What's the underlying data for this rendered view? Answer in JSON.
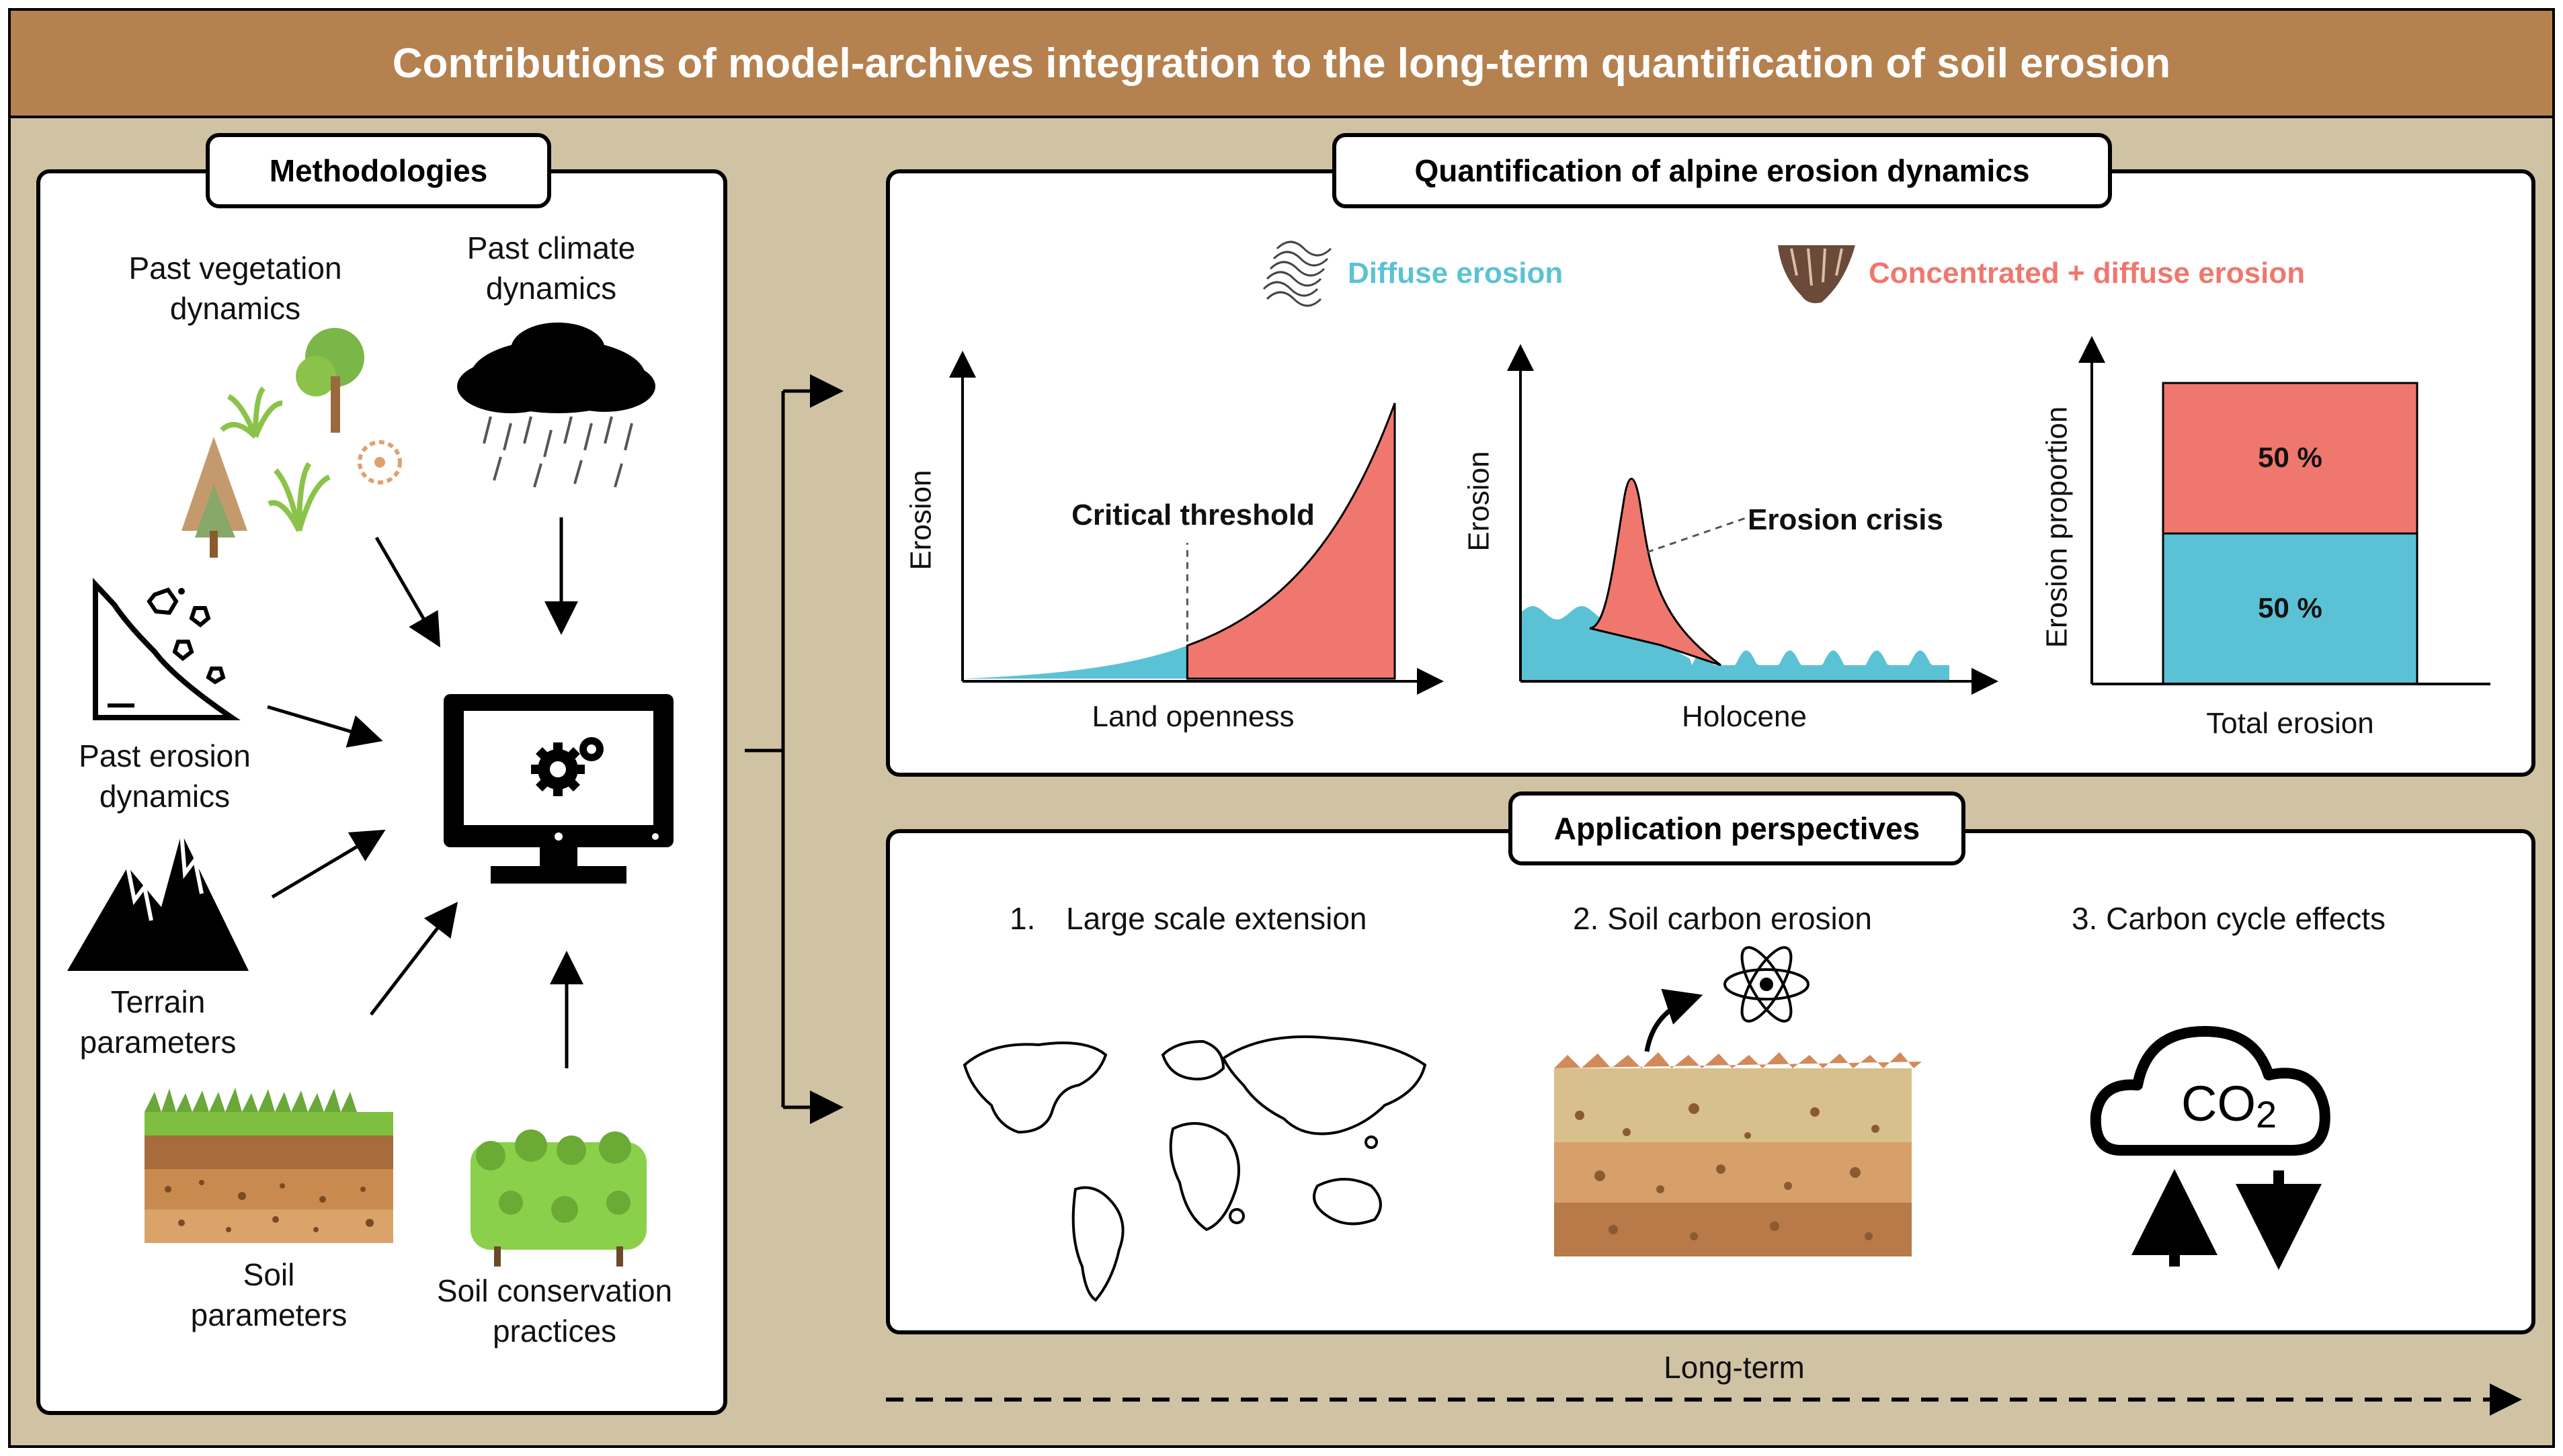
{
  "title": "Contributions of model-archives integration to the long-term quantification of soil erosion",
  "methodologies": {
    "header": "Methodologies",
    "items": {
      "past_vegetation": "Past vegetation dynamics",
      "past_climate": "Past climate dynamics",
      "past_erosion": "Past erosion dynamics",
      "terrain": "Terrain parameters",
      "soil": "Soil parameters",
      "conservation": "Soil conservation practices"
    }
  },
  "quantification": {
    "header": "Quantification of alpine erosion dynamics",
    "legend": {
      "diffuse": "Diffuse erosion",
      "concentrated": "Concentrated + diffuse erosion"
    },
    "colors": {
      "diffuse": "#5bc2d6",
      "concentrated": "#f0776e"
    },
    "chart_data": [
      {
        "type": "area",
        "title": "",
        "xlabel": "Land openness",
        "ylabel": "Erosion",
        "annotation": "Critical threshold",
        "threshold_at": 0.52,
        "series": [
          {
            "name": "Diffuse erosion",
            "segment": "before threshold"
          },
          {
            "name": "Concentrated + diffuse erosion",
            "segment": "after threshold"
          }
        ]
      },
      {
        "type": "area",
        "title": "",
        "xlabel": "Holocene",
        "ylabel": "Erosion",
        "annotation": "Erosion crisis",
        "series": [
          {
            "name": "Diffuse erosion",
            "shape": "low oscillating baseline"
          },
          {
            "name": "Concentrated + diffuse erosion",
            "shape": "single sharp peak"
          }
        ]
      },
      {
        "type": "bar",
        "title": "",
        "categories": [
          "Total erosion"
        ],
        "xlabel": "Total erosion",
        "ylabel": "Erosion proportion",
        "series": [
          {
            "name": "Diffuse erosion",
            "values": [
              50
            ],
            "label": "50 %"
          },
          {
            "name": "Concentrated + diffuse erosion",
            "values": [
              50
            ],
            "label": "50 %"
          }
        ]
      }
    ]
  },
  "applications": {
    "header": "Application perspectives",
    "items": {
      "one_num": "1.",
      "one_text": "Large scale extension",
      "two": "2. Soil carbon erosion",
      "three": "3. Carbon cycle effects",
      "co2_main": "CO",
      "co2_sub": "2"
    }
  },
  "timeline": "Long-term"
}
